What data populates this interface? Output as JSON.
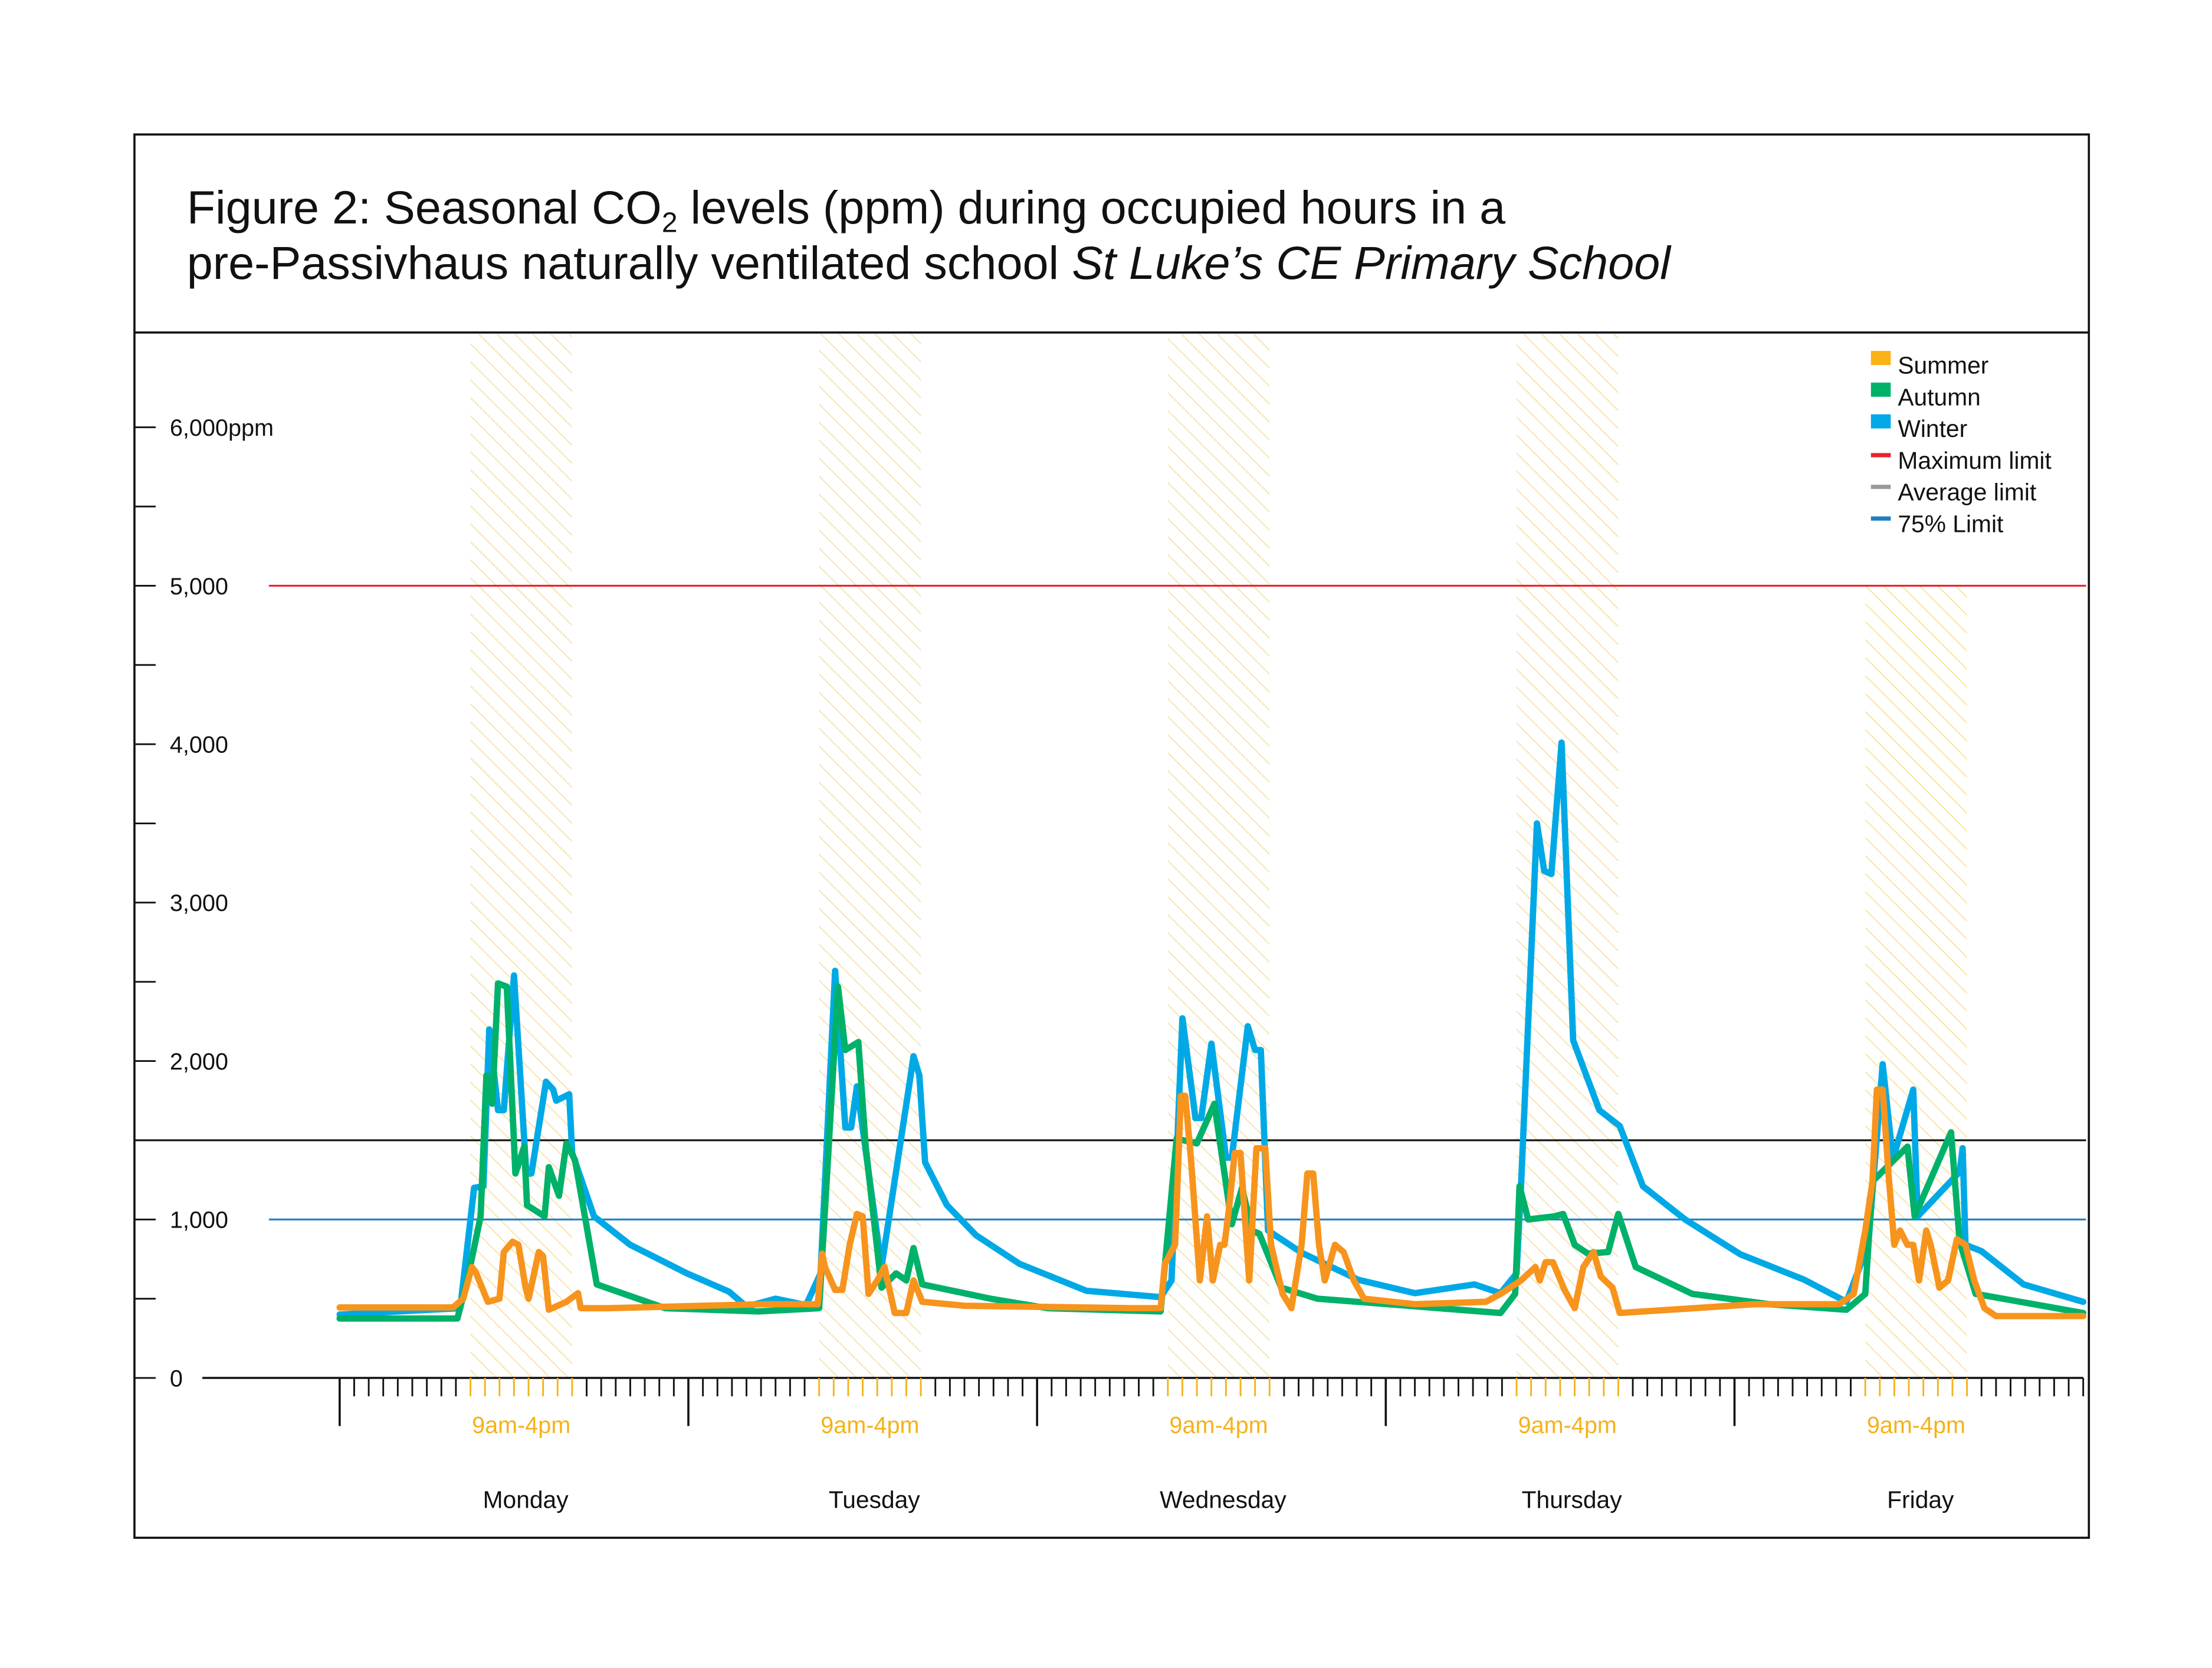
{
  "title": {
    "line1_a": "Figure 2: Seasonal CO",
    "line1_sub": "2",
    "line1_b": " levels (ppm) during occupied hours in a",
    "line2_a": "pre-Passivhaus naturally ventilated school ",
    "line2_italic": "St Luke’s CE Primary School"
  },
  "chart_data": {
    "type": "line",
    "ylim": [
      0,
      6500
    ],
    "y_ticks": [
      {
        "value": 0,
        "label": "0"
      },
      {
        "value": 1000,
        "label": "1,000"
      },
      {
        "value": 2000,
        "label": "2,000"
      },
      {
        "value": 3000,
        "label": "3,000"
      },
      {
        "value": 4000,
        "label": "4,000"
      },
      {
        "value": 5000,
        "label": "5,000"
      },
      {
        "value": 6000,
        "label": "6,000ppm"
      }
    ],
    "x_days": [
      "Monday",
      "Tuesday",
      "Wednesday",
      "Thursday",
      "Friday"
    ],
    "occupied_label": "9am-4pm",
    "occupied_hours": [
      9,
      16
    ],
    "legend_position": "top-right",
    "reference_lines": [
      {
        "name": "Maximum limit",
        "value": 5000,
        "color": "#e8232a"
      },
      {
        "name": "Average limit",
        "value": 1500,
        "color": "#111111"
      },
      {
        "name": "75% Limit",
        "value": 1000,
        "color": "#1f7fc4"
      }
    ],
    "legend": [
      {
        "name": "Summer",
        "color": "#fbb216",
        "kind": "square"
      },
      {
        "name": "Autumn",
        "color": "#00b16a",
        "kind": "square"
      },
      {
        "name": "Winter",
        "color": "#00a9e6",
        "kind": "square"
      },
      {
        "name": "Maximum limit",
        "color": "#e8232a",
        "kind": "line"
      },
      {
        "name": "Average limit",
        "color": "#999999",
        "kind": "line"
      },
      {
        "name": "75% Limit",
        "color": "#1f7fc4",
        "kind": "line"
      }
    ],
    "series": [
      {
        "name": "Winter",
        "color": "#00a9e6",
        "days": [
          [
            [
              0,
              400
            ],
            [
              8.3,
              440
            ],
            [
              9.25,
              1200
            ],
            [
              9.9,
              1210
            ],
            [
              10.3,
              2200
            ],
            [
              10.9,
              1690
            ],
            [
              11.3,
              1690
            ],
            [
              12,
              2540
            ],
            [
              12.85,
              1290
            ],
            [
              13.2,
              1290
            ],
            [
              14.2,
              1870
            ],
            [
              14.7,
              1820
            ],
            [
              14.9,
              1750
            ],
            [
              15.8,
              1790
            ],
            [
              16,
              1420
            ],
            [
              17.5,
              1020
            ],
            [
              20,
              840
            ],
            [
              23.9,
              660
            ]
          ],
          [
            [
              2.8,
              545
            ],
            [
              4,
              450
            ],
            [
              6,
              500
            ],
            [
              8.1,
              460
            ],
            [
              9.1,
              660
            ],
            [
              10.1,
              2570
            ],
            [
              10.8,
              1580
            ],
            [
              11.2,
              1580
            ],
            [
              11.6,
              1840
            ],
            [
              13.3,
              700
            ],
            [
              15.3,
              1910
            ],
            [
              15.5,
              2030
            ],
            [
              15.9,
              1910
            ],
            [
              16.3,
              1360
            ],
            [
              17.8,
              1090
            ],
            [
              19.8,
              900
            ],
            [
              22.8,
              720
            ]
          ],
          [
            [
              3.4,
              550
            ],
            [
              8.5,
              510
            ],
            [
              9.25,
              615
            ],
            [
              10,
              2270
            ],
            [
              10.9,
              1640
            ],
            [
              11.3,
              1640
            ],
            [
              12,
              2110
            ],
            [
              13,
              1390
            ],
            [
              13.4,
              1390
            ],
            [
              14.5,
              2220
            ],
            [
              15,
              2070
            ],
            [
              15.4,
              2070
            ],
            [
              15.9,
              930
            ],
            [
              18.2,
              790
            ],
            [
              22.1,
              620
            ]
          ],
          [
            [
              2,
              535
            ],
            [
              6.1,
              590
            ],
            [
              7.9,
              535
            ],
            [
              9,
              660
            ],
            [
              9.3,
              1200
            ],
            [
              10.4,
              3500
            ],
            [
              10.9,
              3200
            ],
            [
              11.4,
              3180
            ],
            [
              12.1,
              4010
            ],
            [
              12.9,
              2130
            ],
            [
              14.7,
              1690
            ],
            [
              16.1,
              1590
            ],
            [
              17.7,
              1210
            ],
            [
              20.6,
              1000
            ],
            [
              24.4,
              780
            ]
          ],
          [
            [
              4.8,
              620
            ],
            [
              7.7,
              480
            ],
            [
              9.2,
              840
            ],
            [
              10.2,
              1980
            ],
            [
              10.9,
              1380
            ],
            [
              12.3,
              1820
            ],
            [
              12.6,
              1020
            ],
            [
              15.5,
              1300
            ],
            [
              15.7,
              1450
            ],
            [
              15.9,
              840
            ],
            [
              17,
              800
            ],
            [
              19.9,
              590
            ],
            [
              24,
              480
            ]
          ]
        ]
      },
      {
        "name": "Autumn",
        "color": "#00b16a",
        "days": [
          [
            [
              0,
              375
            ],
            [
              8.1,
              375
            ],
            [
              8.8,
              620
            ],
            [
              9.7,
              1020
            ],
            [
              10.1,
              1910
            ],
            [
              10.5,
              1730
            ],
            [
              10.9,
              2490
            ],
            [
              11.5,
              2470
            ],
            [
              12.1,
              1290
            ],
            [
              12.7,
              1460
            ],
            [
              12.9,
              1090
            ],
            [
              14.1,
              1020
            ],
            [
              14.4,
              1330
            ],
            [
              15.1,
              1150
            ],
            [
              15.6,
              1480
            ],
            [
              16.2,
              1375
            ],
            [
              17.7,
              590
            ],
            [
              22.4,
              440
            ]
          ],
          [
            [
              4.8,
              420
            ],
            [
              9,
              440
            ],
            [
              9.6,
              1375
            ],
            [
              10.3,
              2470
            ],
            [
              10.8,
              2070
            ],
            [
              11.7,
              2120
            ],
            [
              12.2,
              1460
            ],
            [
              13.3,
              570
            ],
            [
              14.3,
              660
            ],
            [
              15,
              615
            ],
            [
              15.5,
              820
            ],
            [
              16.1,
              590
            ],
            [
              20.8,
              500
            ]
          ],
          [
            [
              0.7,
              440
            ],
            [
              8.5,
              420
            ],
            [
              9.6,
              1510
            ],
            [
              11,
              1480
            ],
            [
              12.2,
              1730
            ],
            [
              13.4,
              970
            ],
            [
              14.1,
              1200
            ],
            [
              14.8,
              930
            ],
            [
              15.3,
              910
            ],
            [
              16.8,
              570
            ],
            [
              19.3,
              500
            ]
          ],
          [
            [
              7.9,
              410
            ],
            [
              8.9,
              530
            ],
            [
              9.2,
              1210
            ],
            [
              9.8,
              1000
            ],
            [
              11.6,
              1020
            ],
            [
              12.2,
              1035
            ],
            [
              13,
              840
            ],
            [
              13.9,
              785
            ],
            [
              15.3,
              795
            ],
            [
              16,
              1035
            ],
            [
              17.2,
              700
            ],
            [
              21.1,
              530
            ]
          ],
          [
            [
              2.4,
              465
            ],
            [
              7.7,
              430
            ],
            [
              9,
              530
            ],
            [
              9.5,
              1240
            ],
            [
              11.9,
              1460
            ],
            [
              12.4,
              1020
            ],
            [
              14.9,
              1550
            ],
            [
              15.5,
              860
            ],
            [
              16.6,
              530
            ],
            [
              24,
              410
            ]
          ]
        ]
      },
      {
        "name": "Summer",
        "color": "#f7941d",
        "days": [
          [
            [
              0,
              445
            ],
            [
              7.8,
              445
            ],
            [
              8.5,
              500
            ],
            [
              9.1,
              700
            ],
            [
              9.4,
              660
            ],
            [
              10.2,
              480
            ],
            [
              11,
              500
            ],
            [
              11.3,
              795
            ],
            [
              11.9,
              860
            ],
            [
              12.3,
              840
            ],
            [
              12.8,
              570
            ],
            [
              13,
              500
            ],
            [
              13.7,
              795
            ],
            [
              14,
              770
            ],
            [
              14.4,
              430
            ],
            [
              15.6,
              480
            ],
            [
              16.4,
              535
            ],
            [
              16.6,
              440
            ],
            [
              18.5,
              440
            ]
          ],
          [
            [
              5.2,
              465
            ],
            [
              8.9,
              465
            ],
            [
              9.2,
              785
            ],
            [
              9.4,
              700
            ],
            [
              10.1,
              555
            ],
            [
              10.6,
              555
            ],
            [
              11.1,
              840
            ],
            [
              11.6,
              1035
            ],
            [
              12,
              1020
            ],
            [
              12.4,
              530
            ],
            [
              13,
              615
            ],
            [
              13.5,
              700
            ],
            [
              14.2,
              410
            ],
            [
              15,
              410
            ],
            [
              15.5,
              615
            ],
            [
              16.1,
              480
            ],
            [
              19,
              455
            ]
          ],
          [
            [
              6.6,
              440
            ],
            [
              8.5,
              440
            ],
            [
              8.8,
              720
            ],
            [
              9.5,
              840
            ],
            [
              9.9,
              1780
            ],
            [
              10.2,
              1780
            ],
            [
              10.6,
              1375
            ],
            [
              11.2,
              615
            ],
            [
              11.7,
              1020
            ],
            [
              12.1,
              615
            ],
            [
              12.6,
              840
            ],
            [
              12.9,
              840
            ],
            [
              13.2,
              1060
            ],
            [
              13.6,
              1420
            ],
            [
              14,
              1420
            ],
            [
              14.6,
              615
            ],
            [
              15.1,
              1450
            ],
            [
              15.7,
              1450
            ],
            [
              16.1,
              840
            ],
            [
              16.9,
              530
            ],
            [
              17.5,
              440
            ],
            [
              18.2,
              840
            ],
            [
              18.6,
              1290
            ],
            [
              19,
              1290
            ],
            [
              19.4,
              840
            ],
            [
              19.8,
              615
            ],
            [
              20.5,
              840
            ],
            [
              21.1,
              795
            ],
            [
              21.8,
              615
            ],
            [
              22.5,
              500
            ]
          ],
          [
            [
              2,
              465
            ],
            [
              6.9,
              480
            ],
            [
              7.9,
              530
            ],
            [
              9.3,
              615
            ],
            [
              10.3,
              700
            ],
            [
              10.6,
              615
            ],
            [
              11,
              730
            ],
            [
              11.5,
              730
            ],
            [
              12.3,
              555
            ],
            [
              13,
              440
            ],
            [
              13.6,
              700
            ],
            [
              14.3,
              795
            ],
            [
              14.8,
              640
            ],
            [
              15.6,
              570
            ],
            [
              16.1,
              410
            ],
            [
              21.2,
              440
            ]
          ],
          [
            [
              1.4,
              465
            ],
            [
              7.2,
              465
            ],
            [
              8.2,
              530
            ],
            [
              9,
              930
            ],
            [
              9.5,
              1240
            ],
            [
              9.8,
              1820
            ],
            [
              10.2,
              1820
            ],
            [
              10.6,
              1290
            ],
            [
              11,
              840
            ],
            [
              11.4,
              930
            ],
            [
              11.9,
              840
            ],
            [
              12.3,
              840
            ],
            [
              12.7,
              615
            ],
            [
              13.2,
              930
            ],
            [
              13.5,
              840
            ],
            [
              14.1,
              570
            ],
            [
              14.7,
              615
            ],
            [
              15.3,
              875
            ],
            [
              15.9,
              840
            ],
            [
              16.5,
              615
            ],
            [
              17.2,
              440
            ],
            [
              18,
              390
            ],
            [
              24,
              390
            ]
          ]
        ]
      }
    ]
  }
}
